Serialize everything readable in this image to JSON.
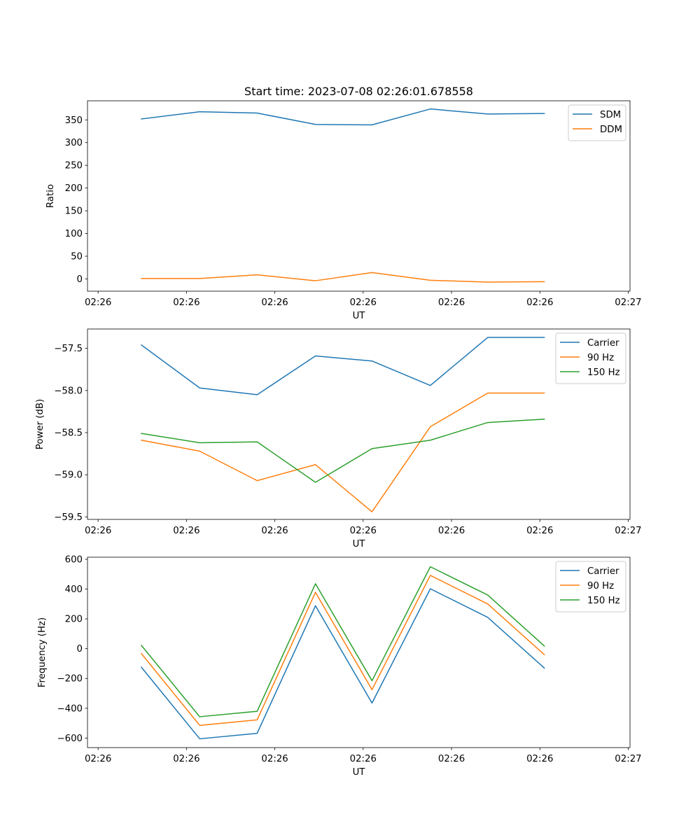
{
  "figure_title": "Start time: 2023-07-08 02:26:01.678558",
  "colors": {
    "blue": "#1f77b4",
    "orange": "#ff7f0e",
    "green": "#2ca02c",
    "axis": "#000000",
    "background": "#ffffff"
  },
  "chart_data": [
    {
      "type": "line",
      "title": "Start time: 2023-07-08 02:26:01.678558",
      "xlabel": "UT",
      "ylabel": "Ratio",
      "x_tick_labels": [
        "02:26",
        "02:26",
        "02:26",
        "02:26",
        "02:26",
        "02:26",
        "02:27"
      ],
      "x_ticks": [
        0,
        1,
        2,
        3,
        4,
        5,
        6
      ],
      "x": [
        0.49,
        1.15,
        1.8,
        2.46,
        3.1,
        3.76,
        4.41,
        5.05
      ],
      "xlim": [
        -0.12,
        6.02
      ],
      "y_ticks": [
        0,
        50,
        100,
        150,
        200,
        250,
        300,
        350
      ],
      "ylim": [
        -27,
        392
      ],
      "legend_location": "upper right",
      "series": [
        {
          "name": "SDM",
          "color": "#1f77b4",
          "values": [
            352,
            368,
            365,
            340,
            339,
            374,
            363,
            364
          ]
        },
        {
          "name": "DDM",
          "color": "#ff7f0e",
          "values": [
            1,
            1,
            9,
            -4,
            14,
            -3,
            -7,
            -6
          ]
        }
      ]
    },
    {
      "type": "line",
      "title": "",
      "xlabel": "UT",
      "ylabel": "Power (dB)",
      "x_tick_labels": [
        "02:26",
        "02:26",
        "02:26",
        "02:26",
        "02:26",
        "02:26",
        "02:27"
      ],
      "x_ticks": [
        0,
        1,
        2,
        3,
        4,
        5,
        6
      ],
      "x": [
        0.49,
        1.15,
        1.8,
        2.46,
        3.1,
        3.76,
        4.41,
        5.05
      ],
      "xlim": [
        -0.12,
        6.02
      ],
      "y_ticks": [
        -59.5,
        -59.0,
        -58.5,
        -58.0,
        -57.5
      ],
      "y_tick_labels": [
        "−59.5",
        "−59.0",
        "−58.5",
        "−58.0",
        "−57.5"
      ],
      "ylim": [
        -59.53,
        -57.27
      ],
      "legend_location": "upper right",
      "series": [
        {
          "name": "Carrier",
          "color": "#1f77b4",
          "values": [
            -57.46,
            -57.97,
            -58.05,
            -57.59,
            -57.65,
            -57.94,
            -57.37,
            -57.37
          ]
        },
        {
          "name": "90 Hz",
          "color": "#ff7f0e",
          "values": [
            -58.59,
            -58.72,
            -59.07,
            -58.88,
            -59.44,
            -58.43,
            -58.03,
            -58.03
          ]
        },
        {
          "name": "150 Hz",
          "color": "#2ca02c",
          "values": [
            -58.51,
            -58.62,
            -58.61,
            -59.09,
            -58.69,
            -58.59,
            -58.38,
            -58.34
          ]
        }
      ]
    },
    {
      "type": "line",
      "title": "",
      "xlabel": "UT",
      "ylabel": "Frequency (Hz)",
      "x_tick_labels": [
        "02:26",
        "02:26",
        "02:26",
        "02:26",
        "02:26",
        "02:26",
        "02:27"
      ],
      "x_ticks": [
        0,
        1,
        2,
        3,
        4,
        5,
        6
      ],
      "x": [
        0.49,
        1.15,
        1.8,
        2.46,
        3.1,
        3.76,
        4.41,
        5.05
      ],
      "xlim": [
        -0.12,
        6.02
      ],
      "y_ticks": [
        -600,
        -400,
        -200,
        0,
        200,
        400,
        600
      ],
      "y_tick_labels": [
        "−600",
        "−400",
        "−200",
        "0",
        "200",
        "400",
        "600"
      ],
      "ylim": [
        -664,
        614
      ],
      "legend_location": "upper right",
      "series": [
        {
          "name": "Carrier",
          "color": "#1f77b4",
          "values": [
            -125,
            -605,
            -568,
            288,
            -365,
            402,
            210,
            -130
          ]
        },
        {
          "name": "90 Hz",
          "color": "#ff7f0e",
          "values": [
            -33,
            -515,
            -478,
            378,
            -275,
            492,
            300,
            -40
          ]
        },
        {
          "name": "150 Hz",
          "color": "#2ca02c",
          "values": [
            22,
            -457,
            -420,
            436,
            -215,
            550,
            360,
            18
          ]
        }
      ]
    }
  ]
}
